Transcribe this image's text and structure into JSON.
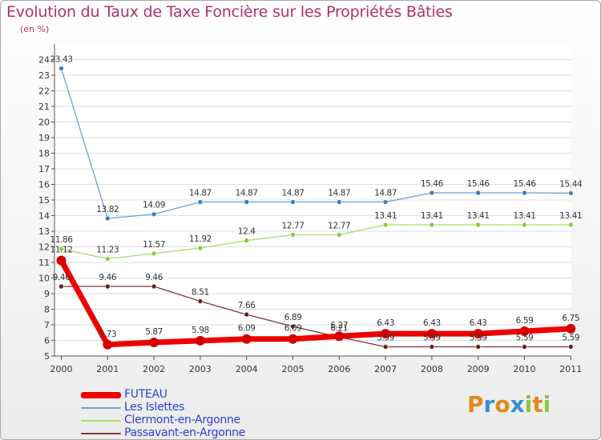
{
  "header": {
    "title": "Evolution du Taux de Taxe Foncière sur les Propriétés Bâties",
    "subtitle": "(en %)"
  },
  "chart_data": {
    "type": "line",
    "title": "Evolution du Taux de Taxe Foncière sur les Propriétés Bâties",
    "ylabel": "(en %)",
    "xlabel": "",
    "categories": [
      "2000",
      "2001",
      "2002",
      "2003",
      "2004",
      "2005",
      "2006",
      "2007",
      "2008",
      "2009",
      "2010",
      "2011"
    ],
    "ylim": [
      5,
      24
    ],
    "yticks": [
      5,
      6,
      7,
      8,
      9,
      10,
      11,
      12,
      13,
      14,
      15,
      16,
      17,
      18,
      19,
      20,
      21,
      22,
      23,
      24
    ],
    "grid": "horizontal",
    "legend_position": "bottom-left",
    "series": [
      {
        "name": "FUTEAU",
        "color": "#ee0000",
        "point_color": "#d40000",
        "values": [
          11.12,
          5.73,
          5.87,
          5.98,
          6.09,
          6.09,
          6.27,
          6.43,
          6.43,
          6.43,
          6.59,
          6.75
        ]
      },
      {
        "name": "Les Islettes",
        "color": "#6e9fcf",
        "point_color": "#3d7fc0",
        "values": [
          23.43,
          13.82,
          14.09,
          14.87,
          14.87,
          14.87,
          14.87,
          14.87,
          15.46,
          15.46,
          15.46,
          15.44
        ]
      },
      {
        "name": "Clermont-en-Argonne",
        "color": "#a6dc6a",
        "point_color": "#8bcc40",
        "values": [
          11.86,
          11.23,
          11.57,
          11.92,
          12.4,
          12.77,
          12.77,
          13.41,
          13.41,
          13.41,
          13.41,
          13.41
        ]
      },
      {
        "name": "Passavant-en-Argonne",
        "color": "#7a3838",
        "point_color": "#662222",
        "values": [
          9.46,
          9.46,
          9.46,
          8.51,
          7.66,
          6.89,
          6.21,
          5.59,
          5.59,
          5.59,
          5.59,
          5.59
        ]
      }
    ],
    "data_labels": {
      "FUTEAU": [
        "11.12",
        "5.73",
        "5.87",
        "5.98",
        "6.09",
        "6.09",
        "6.27",
        "6.43",
        "6.43",
        "6.43",
        "6.59",
        "6.75"
      ],
      "Les Islettes": [
        "23.43",
        "13.82",
        "14.09",
        "14.87",
        "14.87",
        "14.87",
        "14.87",
        "14.87",
        "15.46",
        "15.46",
        "15.46",
        "15.44"
      ],
      "Clermont-en-Argonne": [
        "11.86",
        "11.23",
        "11.57",
        "11.92",
        "12.4",
        "12.77",
        "12.77",
        "13.41",
        "13.41",
        "13.41",
        "13.41",
        "13.41"
      ],
      "Passavant-en-Argonne": [
        "9.46",
        "9.46",
        "9.46",
        "8.51",
        "7.66",
        "6.89",
        "6.21",
        "5.59",
        "5.59",
        "5.59",
        "5.59",
        "5.59"
      ]
    }
  },
  "legend": {
    "items": [
      {
        "label": "FUTEAU",
        "color": "#ee0000"
      },
      {
        "label": "Les Islettes",
        "color": "#6e9fcf"
      },
      {
        "label": "Clermont-en-Argonne",
        "color": "#a6dc6a"
      },
      {
        "label": "Passavant-en-Argonne",
        "color": "#7a3838"
      }
    ]
  },
  "logo": {
    "text": "Proxiti",
    "letters": [
      {
        "ch": "P",
        "color": "#e08a1e"
      },
      {
        "ch": "r",
        "color": "#3b8fd0"
      },
      {
        "ch": "o",
        "color": "#e08a1e"
      },
      {
        "ch": "x",
        "color": "#3b8fd0"
      },
      {
        "ch": "i",
        "color": "#8cc63f"
      },
      {
        "ch": "t",
        "color": "#e08a1e"
      },
      {
        "ch": "i",
        "color": "#8cc63f"
      }
    ]
  }
}
